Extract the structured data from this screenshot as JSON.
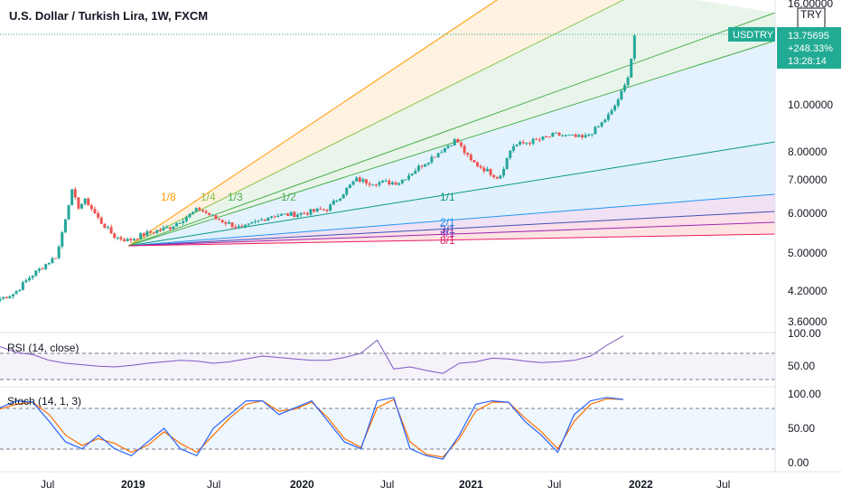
{
  "header": {
    "title": "U.S. Dollar / Turkish Lira, 1W, FXCM"
  },
  "price_axis": {
    "currency": "TRY",
    "ticks": [
      "16.00000",
      "10.00000",
      "8.00000",
      "7.00000",
      "6.00000",
      "5.00000",
      "4.20000",
      "3.60000"
    ]
  },
  "badge": {
    "symbol": "USDTRY",
    "price": "13.75695",
    "change": "+248.33%",
    "countdown": "13:28:14",
    "color": "#22ab94"
  },
  "time_axis": {
    "labels": [
      "Jul",
      "2019",
      "Jul",
      "2020",
      "Jul",
      "2021",
      "Jul",
      "2022",
      "Jul"
    ]
  },
  "rsi": {
    "label": "RSI (14, close)",
    "ticks": [
      "100.00",
      "50.00"
    ],
    "color": "#7e57c2"
  },
  "stoch": {
    "label": "Stoch (14, 1, 3)",
    "ticks": [
      "100.00",
      "50.00",
      "0.00"
    ],
    "k_color": "#2962ff",
    "d_color": "#ff6d00"
  },
  "chart_data": [
    {
      "type": "candlestick",
      "title": "U.S. Dollar / Turkish Lira, 1W, FXCM",
      "x_axis": [
        "Jul",
        "2019",
        "Jul",
        "2020",
        "Jul",
        "2021",
        "Jul",
        "2022",
        "Jul"
      ],
      "y_scale": "log",
      "ylim": [
        3.4,
        16.0
      ],
      "last_price": 13.75695,
      "up_color": "#26a69a",
      "down_color": "#ef5350",
      "close_path": [
        [
          "2018-03",
          3.95
        ],
        [
          "2018-04",
          4.05
        ],
        [
          "2018-05",
          4.35
        ],
        [
          "2018-06",
          4.6
        ],
        [
          "2018-07",
          4.85
        ],
        [
          "2018-08",
          6.6
        ],
        [
          "2018-08-15",
          6.1
        ],
        [
          "2018-09",
          6.3
        ],
        [
          "2018-10",
          5.7
        ],
        [
          "2018-11",
          5.3
        ],
        [
          "2018-12",
          5.2
        ],
        [
          "2019-01",
          5.35
        ],
        [
          "2019-03",
          5.55
        ],
        [
          "2019-05",
          6.05
        ],
        [
          "2019-06",
          5.8
        ],
        [
          "2019-08",
          5.5
        ],
        [
          "2019-10",
          5.85
        ],
        [
          "2019-12",
          5.9
        ],
        [
          "2020-02",
          6.05
        ],
        [
          "2020-04",
          6.95
        ],
        [
          "2020-05",
          6.85
        ],
        [
          "2020-07",
          6.85
        ],
        [
          "2020-09",
          7.6
        ],
        [
          "2020-11",
          8.4
        ],
        [
          "2020-12",
          7.6
        ],
        [
          "2021-02",
          7.0
        ],
        [
          "2021-03",
          8.15
        ],
        [
          "2021-05",
          8.4
        ],
        [
          "2021-06",
          8.6
        ],
        [
          "2021-08",
          8.45
        ],
        [
          "2021-09",
          8.9
        ],
        [
          "2021-10",
          9.6
        ],
        [
          "2021-11",
          11.0
        ],
        [
          "2021-11-20",
          13.75
        ]
      ],
      "gann_fan": {
        "origin": "2018-12",
        "levels": [
          {
            "label": "1/8",
            "color": "#ff9800"
          },
          {
            "label": "1/4",
            "color": "#8bc34a"
          },
          {
            "label": "1/3",
            "color": "#4caf50"
          },
          {
            "label": "1/2",
            "color": "#4caf50"
          },
          {
            "label": "1/1",
            "color": "#089981"
          },
          {
            "label": "2/1",
            "color": "#2196f3"
          },
          {
            "label": "3/1",
            "color": "#3f51b5"
          },
          {
            "label": "4/1",
            "color": "#9c27b0"
          },
          {
            "label": "8/1",
            "color": "#e91e63"
          }
        ]
      }
    },
    {
      "type": "line",
      "title": "RSI (14, close)",
      "ylim": [
        30,
        100
      ],
      "levels": [
        70,
        30
      ],
      "series": [
        {
          "name": "RSI",
          "values": [
            83,
            75,
            72,
            64,
            60,
            58,
            56,
            55,
            57,
            60,
            62,
            64,
            63,
            60,
            62,
            66,
            70,
            68,
            66,
            64,
            64,
            68,
            74,
            92,
            52,
            55,
            50,
            46,
            60,
            62,
            67,
            66,
            63,
            61,
            62,
            64,
            70,
            85,
            98
          ]
        }
      ]
    },
    {
      "type": "line",
      "title": "Stoch (14, 1, 3)",
      "ylim": [
        -8,
        100
      ],
      "levels": [
        80,
        20
      ],
      "series": [
        {
          "name": "%K",
          "values": [
            80,
            90,
            88,
            60,
            30,
            20,
            40,
            20,
            10,
            30,
            50,
            20,
            10,
            50,
            70,
            90,
            90,
            70,
            80,
            90,
            60,
            30,
            20,
            90,
            95,
            20,
            10,
            5,
            40,
            85,
            90,
            88,
            60,
            40,
            15,
            70,
            90,
            95,
            92
          ]
        },
        {
          "name": "%D",
          "values": [
            78,
            85,
            88,
            70,
            40,
            25,
            35,
            28,
            15,
            25,
            45,
            28,
            15,
            40,
            65,
            85,
            90,
            75,
            78,
            88,
            65,
            35,
            22,
            80,
            92,
            30,
            12,
            8,
            35,
            75,
            88,
            88,
            65,
            45,
            20,
            60,
            85,
            93,
            92
          ]
        }
      ]
    }
  ]
}
